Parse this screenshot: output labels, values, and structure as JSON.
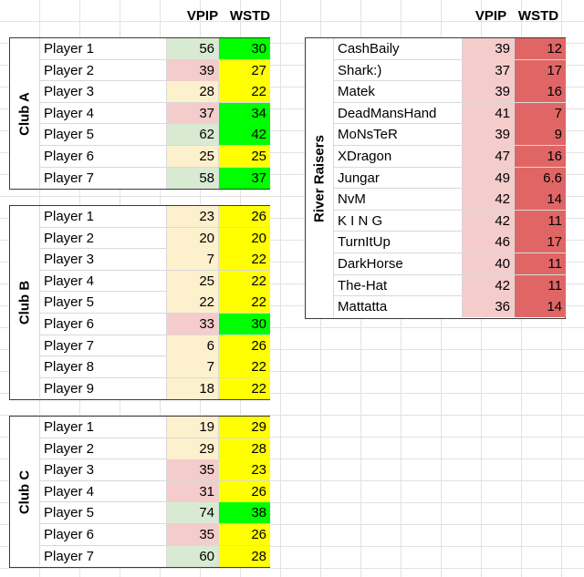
{
  "headers": {
    "vpip": "VPIP",
    "wstd": "WSTD"
  },
  "colors": {
    "vpip_green": "#d9ead3",
    "vpip_red": "#f4cccc",
    "vpip_yellow": "#fdf0cd",
    "wstd_green": "#00ff00",
    "wstd_yellow": "#ffff00",
    "wstd_red": "#e06666"
  },
  "clubs": [
    {
      "label": "Club A",
      "rows": [
        {
          "name": "Player 1",
          "vpip": "56",
          "wstd": "30",
          "vc": "vpip_green",
          "wc": "wstd_green"
        },
        {
          "name": "Player 2",
          "vpip": "39",
          "wstd": "27",
          "vc": "vpip_red",
          "wc": "wstd_yellow"
        },
        {
          "name": "Player 3",
          "vpip": "28",
          "wstd": "22",
          "vc": "vpip_yellow",
          "wc": "wstd_yellow"
        },
        {
          "name": "Player 4",
          "vpip": "37",
          "wstd": "34",
          "vc": "vpip_red",
          "wc": "wstd_green"
        },
        {
          "name": "Player 5",
          "vpip": "62",
          "wstd": "42",
          "vc": "vpip_green",
          "wc": "wstd_green"
        },
        {
          "name": "Player 6",
          "vpip": "25",
          "wstd": "25",
          "vc": "vpip_yellow",
          "wc": "wstd_yellow"
        },
        {
          "name": "Player 7",
          "vpip": "58",
          "wstd": "37",
          "vc": "vpip_green",
          "wc": "wstd_green"
        }
      ]
    },
    {
      "label": "Club B",
      "rows": [
        {
          "name": "Player 1",
          "vpip": "23",
          "wstd": "26",
          "vc": "vpip_yellow",
          "wc": "wstd_yellow"
        },
        {
          "name": "Player 2",
          "vpip": "20",
          "wstd": "20",
          "vc": "vpip_yellow",
          "wc": "wstd_yellow"
        },
        {
          "name": "Player 3",
          "vpip": "7",
          "wstd": "22",
          "vc": "vpip_yellow",
          "wc": "wstd_yellow"
        },
        {
          "name": "Player 4",
          "vpip": "25",
          "wstd": "22",
          "vc": "vpip_yellow",
          "wc": "wstd_yellow"
        },
        {
          "name": "Player 5",
          "vpip": "22",
          "wstd": "22",
          "vc": "vpip_yellow",
          "wc": "wstd_yellow"
        },
        {
          "name": "Player 6",
          "vpip": "33",
          "wstd": "30",
          "vc": "vpip_red",
          "wc": "wstd_green"
        },
        {
          "name": "Player 7",
          "vpip": "6",
          "wstd": "26",
          "vc": "vpip_yellow",
          "wc": "wstd_yellow"
        },
        {
          "name": "Player 8",
          "vpip": "7",
          "wstd": "22",
          "vc": "vpip_yellow",
          "wc": "wstd_yellow"
        },
        {
          "name": "Player 9",
          "vpip": "18",
          "wstd": "22",
          "vc": "vpip_yellow",
          "wc": "wstd_yellow"
        }
      ]
    },
    {
      "label": "Club C",
      "rows": [
        {
          "name": "Player 1",
          "vpip": "19",
          "wstd": "29",
          "vc": "vpip_yellow",
          "wc": "wstd_yellow"
        },
        {
          "name": "Player 2",
          "vpip": "29",
          "wstd": "28",
          "vc": "vpip_yellow",
          "wc": "wstd_yellow"
        },
        {
          "name": "Player 3",
          "vpip": "35",
          "wstd": "23",
          "vc": "vpip_red",
          "wc": "wstd_yellow"
        },
        {
          "name": "Player 4",
          "vpip": "31",
          "wstd": "26",
          "vc": "vpip_red",
          "wc": "wstd_yellow"
        },
        {
          "name": "Player 5",
          "vpip": "74",
          "wstd": "38",
          "vc": "vpip_green",
          "wc": "wstd_green"
        },
        {
          "name": "Player 6",
          "vpip": "35",
          "wstd": "26",
          "vc": "vpip_red",
          "wc": "wstd_yellow"
        },
        {
          "name": "Player 7",
          "vpip": "60",
          "wstd": "28",
          "vc": "vpip_green",
          "wc": "wstd_yellow"
        }
      ]
    },
    {
      "label": "River Raisers",
      "rows": [
        {
          "name": "CashBaily",
          "vpip": "39",
          "wstd": "12",
          "vc": "vpip_red",
          "wc": "wstd_red"
        },
        {
          "name": "Shark:)",
          "vpip": "37",
          "wstd": "17",
          "vc": "vpip_red",
          "wc": "wstd_red"
        },
        {
          "name": "Matek",
          "vpip": "39",
          "wstd": "16",
          "vc": "vpip_red",
          "wc": "wstd_red"
        },
        {
          "name": "DeadMansHand",
          "vpip": "41",
          "wstd": "7",
          "vc": "vpip_red",
          "wc": "wstd_red"
        },
        {
          "name": "MoNsTeR",
          "vpip": "39",
          "wstd": "9",
          "vc": "vpip_red",
          "wc": "wstd_red"
        },
        {
          "name": "XDragon",
          "vpip": "47",
          "wstd": "16",
          "vc": "vpip_red",
          "wc": "wstd_red"
        },
        {
          "name": "Jungar",
          "vpip": "49",
          "wstd": "6.6",
          "vc": "vpip_red",
          "wc": "wstd_red"
        },
        {
          "name": "NvM",
          "vpip": "42",
          "wstd": "14",
          "vc": "vpip_red",
          "wc": "wstd_red"
        },
        {
          "name": "K I N G",
          "vpip": "42",
          "wstd": "11",
          "vc": "vpip_red",
          "wc": "wstd_red"
        },
        {
          "name": "TurnItUp",
          "vpip": "46",
          "wstd": "17",
          "vc": "vpip_red",
          "wc": "wstd_red"
        },
        {
          "name": "DarkHorse",
          "vpip": "40",
          "wstd": "11",
          "vc": "vpip_red",
          "wc": "wstd_red"
        },
        {
          "name": "The-Hat",
          "vpip": "42",
          "wstd": "11",
          "vc": "vpip_red",
          "wc": "wstd_red"
        },
        {
          "name": "Mattatta",
          "vpip": "36",
          "wstd": "14",
          "vc": "vpip_red",
          "wc": "wstd_red"
        }
      ]
    }
  ]
}
